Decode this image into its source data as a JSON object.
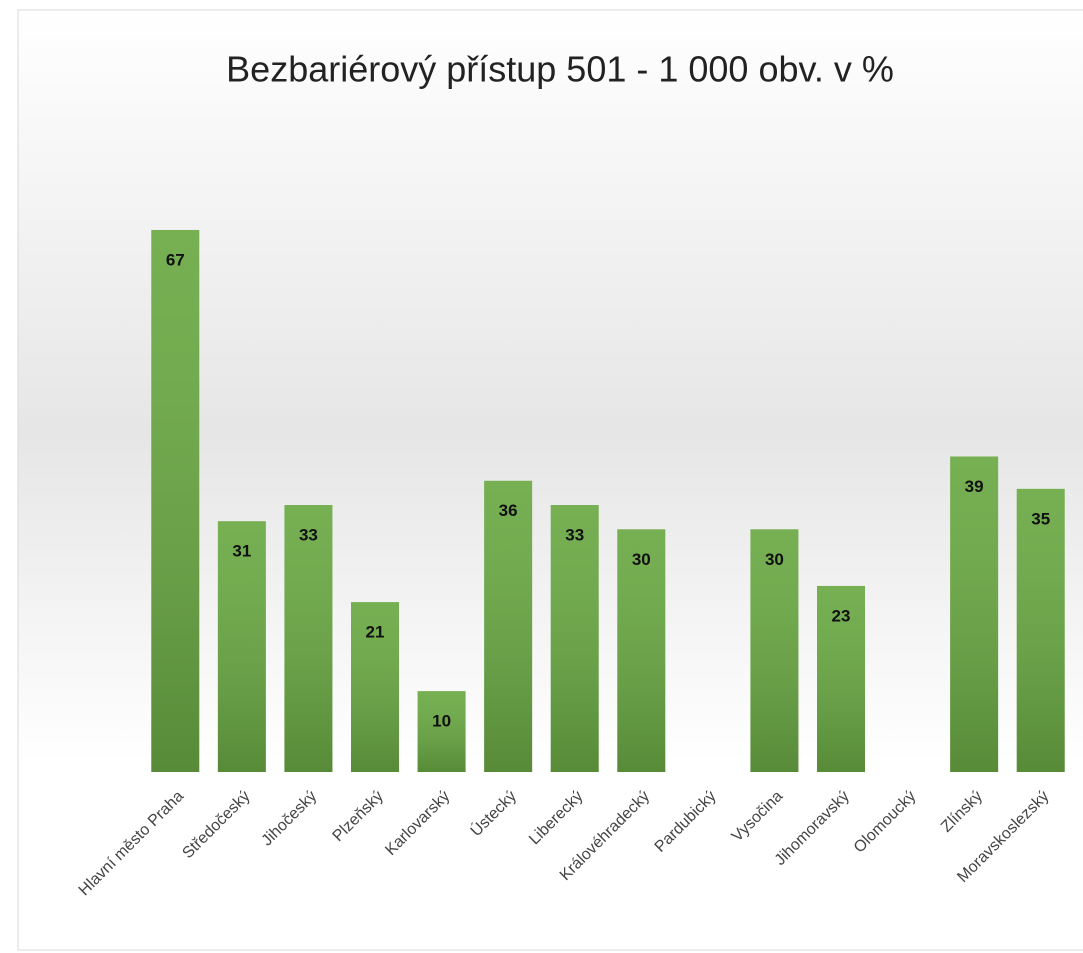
{
  "chart_data": {
    "type": "bar",
    "title": "Bezbariérový přístup 501 - 1 000 obv. v %",
    "categories": [
      "Hlavní město Praha",
      "Středočeský",
      "Jihočeský",
      "Plzeňský",
      "Karlovarský",
      "Ústecký",
      "Liberecký",
      "Královéhradecký",
      "Pardubický",
      "Vysočina",
      "Jihomoravský",
      "Olomoucký",
      "Zlínský",
      "Moravskoslezský"
    ],
    "values": [
      67,
      31,
      33,
      21,
      10,
      36,
      33,
      30,
      null,
      30,
      23,
      null,
      39,
      35
    ],
    "color": "#6aa943",
    "ylim": [
      0,
      70
    ]
  }
}
